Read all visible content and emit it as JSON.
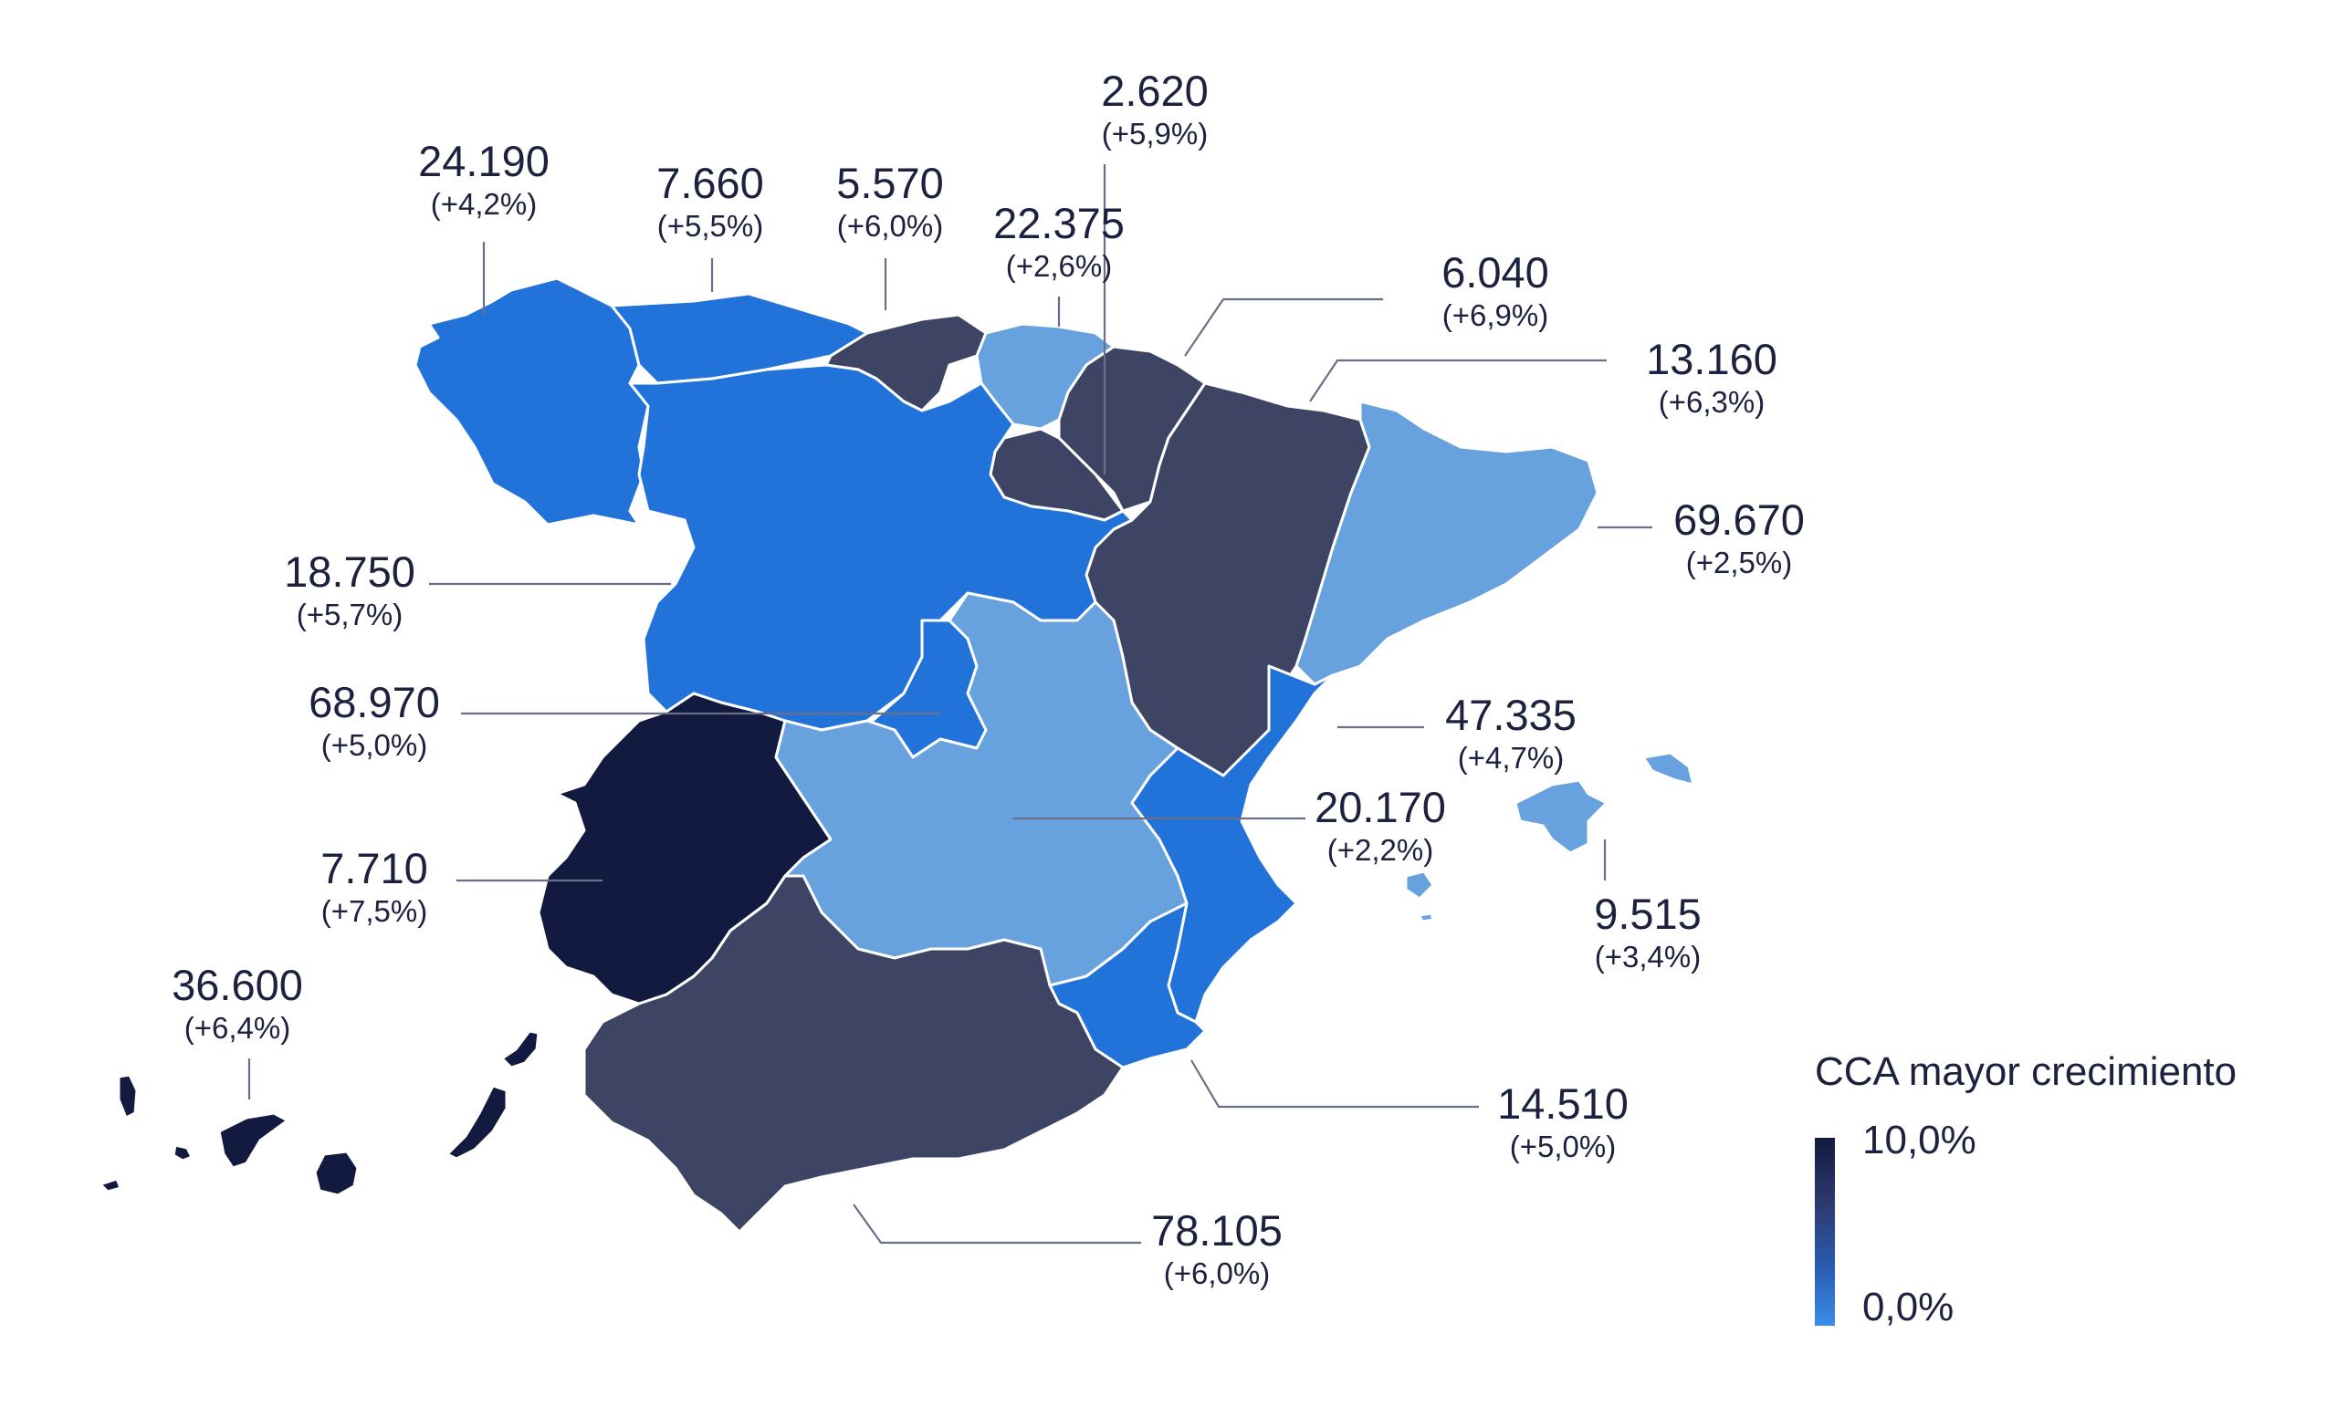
{
  "legend": {
    "title": "CCA mayor crecimiento",
    "max_label": "10,0%",
    "min_label": "0,0%",
    "colors": [
      "#121a40",
      "#3d4464",
      "#2273d9",
      "#67a2df"
    ]
  },
  "regions": [
    {
      "key": "galicia",
      "value": "24.190",
      "pct": "(+4,2%)"
    },
    {
      "key": "asturias",
      "value": "7.660",
      "pct": "(+5,5%)"
    },
    {
      "key": "cantabria",
      "value": "5.570",
      "pct": "(+6,0%)"
    },
    {
      "key": "pais_vasco",
      "value": "22.375",
      "pct": "(+2,6%)"
    },
    {
      "key": "navarra",
      "value": "2.620",
      "pct": "(+5,9%)"
    },
    {
      "key": "la_rioja",
      "value": "6.040",
      "pct": "(+6,9%)"
    },
    {
      "key": "aragon",
      "value": "13.160",
      "pct": "(+6,3%)"
    },
    {
      "key": "cataluna",
      "value": "69.670",
      "pct": "(+2,5%)"
    },
    {
      "key": "castilla_leon",
      "value": "18.750",
      "pct": "(+5,7%)"
    },
    {
      "key": "madrid",
      "value": "68.970",
      "pct": "(+5,0%)"
    },
    {
      "key": "valencia",
      "value": "47.335",
      "pct": "(+4,7%)"
    },
    {
      "key": "castilla_la_mancha",
      "value": "20.170",
      "pct": "(+2,2%)"
    },
    {
      "key": "extremadura",
      "value": "7.710",
      "pct": "(+7,5%)"
    },
    {
      "key": "baleares",
      "value": "9.515",
      "pct": "(+3,4%)"
    },
    {
      "key": "canarias",
      "value": "36.600",
      "pct": "(+6,4%)"
    },
    {
      "key": "murcia",
      "value": "14.510",
      "pct": "(+5,0%)"
    },
    {
      "key": "andalucia",
      "value": "78.105",
      "pct": "(+6,0%)"
    }
  ]
}
